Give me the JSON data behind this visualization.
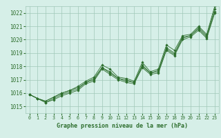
{
  "xlabel": "Graphe pression niveau de la mer (hPa)",
  "background_color": "#d6efe8",
  "grid_color": "#a0c8b8",
  "line_color": "#2d6e2d",
  "text_color": "#2d6e2d",
  "x_ticks": [
    0,
    1,
    2,
    3,
    4,
    5,
    6,
    7,
    8,
    9,
    10,
    11,
    12,
    13,
    14,
    15,
    16,
    17,
    18,
    19,
    20,
    21,
    22,
    23
  ],
  "ylim": [
    1014.5,
    1022.5
  ],
  "xlim": [
    -0.5,
    23.5
  ],
  "yticks": [
    1015,
    1016,
    1017,
    1018,
    1019,
    1020,
    1021,
    1022
  ],
  "series": [
    [
      1015.9,
      1015.6,
      1015.4,
      1015.7,
      1016.0,
      1016.2,
      1016.5,
      1016.9,
      1017.2,
      1018.1,
      1017.8,
      1017.2,
      1017.1,
      1016.9,
      1018.3,
      1017.6,
      1017.8,
      1019.6,
      1019.2,
      1020.3,
      1020.4,
      1021.0,
      1020.4,
      1022.5
    ],
    [
      1015.9,
      1015.6,
      1015.4,
      1015.7,
      1016.0,
      1016.2,
      1016.4,
      1016.8,
      1017.1,
      1017.9,
      1017.6,
      1017.1,
      1017.0,
      1016.8,
      1018.1,
      1017.5,
      1017.7,
      1019.4,
      1019.0,
      1020.2,
      1020.3,
      1020.9,
      1020.3,
      1022.3
    ],
    [
      1015.9,
      1015.6,
      1015.3,
      1015.6,
      1015.9,
      1016.1,
      1016.3,
      1016.8,
      1017.0,
      1017.9,
      1017.5,
      1017.1,
      1016.9,
      1016.8,
      1018.0,
      1017.5,
      1017.6,
      1019.3,
      1018.9,
      1020.1,
      1020.3,
      1020.8,
      1020.2,
      1022.1
    ],
    [
      1015.9,
      1015.6,
      1015.3,
      1015.5,
      1015.8,
      1016.0,
      1016.2,
      1016.7,
      1016.9,
      1017.8,
      1017.4,
      1017.0,
      1016.8,
      1016.7,
      1017.9,
      1017.4,
      1017.5,
      1019.2,
      1018.8,
      1020.0,
      1020.2,
      1020.7,
      1020.1,
      1022.0
    ]
  ],
  "marker": "D",
  "marker_size": 1.8,
  "linewidth": 0.6
}
